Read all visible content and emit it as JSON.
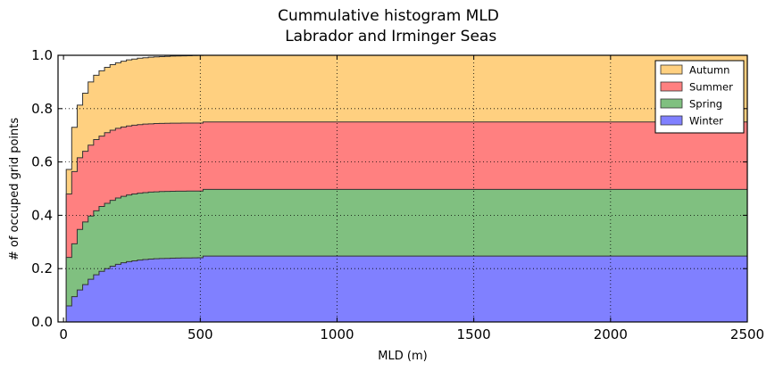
{
  "chart_data": {
    "type": "area",
    "subtype": "stacked cumulative step histogram",
    "title_line1": "Cummulative histogram MLD",
    "title_line2": " Labrador and Irminger Seas",
    "xlabel": "MLD (m)",
    "ylabel": "# of occuped grid points",
    "xlim": [
      -20,
      2500
    ],
    "ylim": [
      0.0,
      1.0
    ],
    "xticks": [
      0,
      500,
      1000,
      1500,
      2000,
      2500
    ],
    "xtick_labels": [
      "0",
      "500",
      "1000",
      "1500",
      "2000",
      "2500"
    ],
    "yticks": [
      0.0,
      0.2,
      0.4,
      0.6,
      0.8,
      1.0
    ],
    "ytick_labels": [
      "0.0",
      "0.2",
      "0.4",
      "0.6",
      "0.8",
      "1.0"
    ],
    "grid": true,
    "legend_position": "top-right",
    "legend_order": [
      "Autumn",
      "Summer",
      "Spring",
      "Winter"
    ],
    "bin_edges": [
      10,
      30,
      50,
      70,
      90,
      110,
      130,
      150,
      170,
      190,
      210,
      230,
      250,
      270,
      290,
      310,
      330,
      350,
      370,
      390,
      410,
      430,
      450,
      470,
      490,
      510,
      2500
    ],
    "series": [
      {
        "name": "Winter",
        "color": "#8080ff",
        "cumulative": [
          0.06,
          0.095,
          0.12,
          0.14,
          0.16,
          0.177,
          0.19,
          0.2,
          0.209,
          0.216,
          0.222,
          0.226,
          0.229,
          0.232,
          0.234,
          0.236,
          0.237,
          0.238,
          0.2385,
          0.239,
          0.2395,
          0.2398,
          0.24,
          0.2405,
          0.241,
          0.247
        ]
      },
      {
        "name": "Spring",
        "color": "#80c080",
        "cumulative": [
          0.242,
          0.293,
          0.347,
          0.375,
          0.397,
          0.417,
          0.433,
          0.445,
          0.456,
          0.465,
          0.471,
          0.476,
          0.48,
          0.483,
          0.485,
          0.487,
          0.488,
          0.489,
          0.4895,
          0.49,
          0.4903,
          0.4905,
          0.4907,
          0.4908,
          0.491,
          0.497
        ]
      },
      {
        "name": "Summer",
        "color": "#ff8080",
        "cumulative": [
          0.48,
          0.564,
          0.616,
          0.64,
          0.663,
          0.684,
          0.697,
          0.71,
          0.719,
          0.726,
          0.731,
          0.735,
          0.738,
          0.74,
          0.742,
          0.743,
          0.744,
          0.7445,
          0.745,
          0.7453,
          0.7455,
          0.7457,
          0.7458,
          0.7459,
          0.746,
          0.75
        ]
      },
      {
        "name": "Autumn",
        "color": "#ffd080",
        "cumulative": [
          0.572,
          0.73,
          0.813,
          0.858,
          0.9,
          0.925,
          0.942,
          0.955,
          0.965,
          0.972,
          0.978,
          0.983,
          0.986,
          0.989,
          0.991,
          0.993,
          0.994,
          0.995,
          0.996,
          0.997,
          0.9975,
          0.998,
          0.9985,
          0.999,
          0.9995,
          1.0
        ]
      }
    ]
  }
}
